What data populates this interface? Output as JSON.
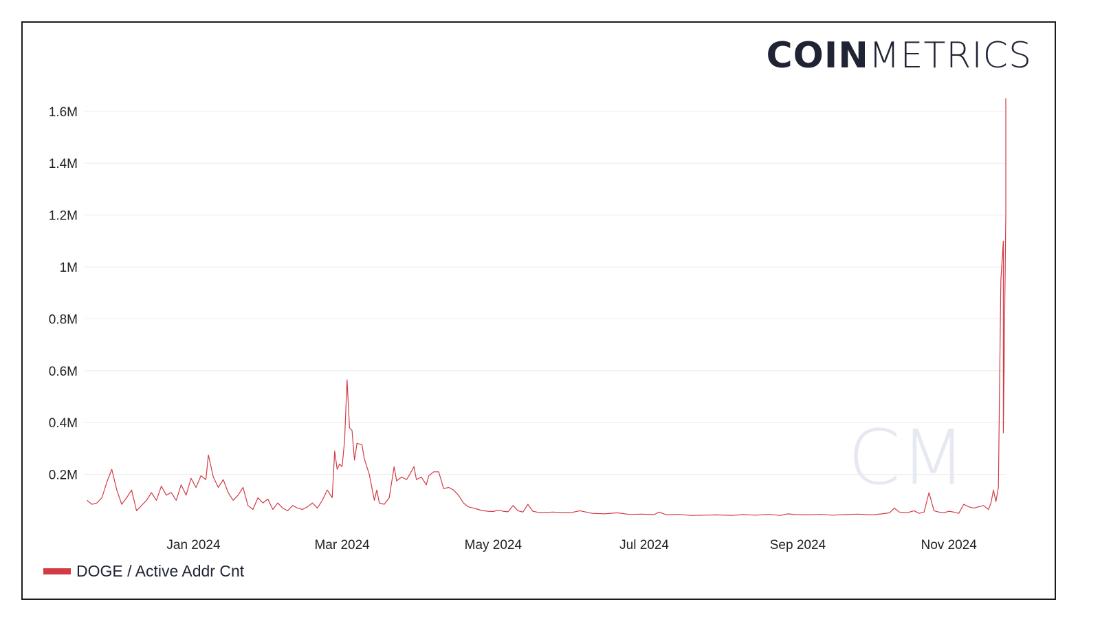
{
  "brand": {
    "bold": "COIN",
    "light": "METRICS",
    "watermark": "CM"
  },
  "chart_data": {
    "type": "line",
    "title": "",
    "xlabel": "",
    "ylabel": "",
    "ylim": [
      0,
      1650000
    ],
    "y_ticks": [
      200000,
      400000,
      600000,
      800000,
      1000000,
      1200000,
      1400000,
      1600000
    ],
    "y_tick_labels": [
      "0.2M",
      "0.4M",
      "0.6M",
      "0.8M",
      "1M",
      "1.2M",
      "1.4M",
      "1.6M"
    ],
    "x_range": [
      "2023-11-18",
      "2024-11-24"
    ],
    "x_ticks": [
      "2024-01-01",
      "2024-03-01",
      "2024-05-01",
      "2024-07-01",
      "2024-09-01",
      "2024-11-01"
    ],
    "x_tick_labels": [
      "Jan 2024",
      "Mar 2024",
      "May 2024",
      "Jul 2024",
      "Sep 2024",
      "Nov 2024"
    ],
    "grid": "horizontal",
    "legend_placement": "bottom-left",
    "series": [
      {
        "name": "DOGE / Active Addr Cnt",
        "color": "#d23a45",
        "points": [
          [
            "2023-11-19",
            100000
          ],
          [
            "2023-11-21",
            85000
          ],
          [
            "2023-11-23",
            90000
          ],
          [
            "2023-11-25",
            110000
          ],
          [
            "2023-11-27",
            170000
          ],
          [
            "2023-11-29",
            220000
          ],
          [
            "2023-12-01",
            140000
          ],
          [
            "2023-12-03",
            85000
          ],
          [
            "2023-12-05",
            110000
          ],
          [
            "2023-12-07",
            140000
          ],
          [
            "2023-12-09",
            60000
          ],
          [
            "2023-12-11",
            80000
          ],
          [
            "2023-12-13",
            100000
          ],
          [
            "2023-12-15",
            130000
          ],
          [
            "2023-12-17",
            100000
          ],
          [
            "2023-12-19",
            155000
          ],
          [
            "2023-12-21",
            120000
          ],
          [
            "2023-12-23",
            130000
          ],
          [
            "2023-12-25",
            100000
          ],
          [
            "2023-12-27",
            160000
          ],
          [
            "2023-12-29",
            120000
          ],
          [
            "2023-12-31",
            185000
          ],
          [
            "2024-01-02",
            150000
          ],
          [
            "2024-01-04",
            195000
          ],
          [
            "2024-01-06",
            180000
          ],
          [
            "2024-01-07",
            275000
          ],
          [
            "2024-01-09",
            190000
          ],
          [
            "2024-01-11",
            150000
          ],
          [
            "2024-01-13",
            180000
          ],
          [
            "2024-01-15",
            130000
          ],
          [
            "2024-01-17",
            100000
          ],
          [
            "2024-01-19",
            120000
          ],
          [
            "2024-01-21",
            150000
          ],
          [
            "2024-01-23",
            80000
          ],
          [
            "2024-01-25",
            65000
          ],
          [
            "2024-01-27",
            110000
          ],
          [
            "2024-01-29",
            90000
          ],
          [
            "2024-01-31",
            105000
          ],
          [
            "2024-02-02",
            65000
          ],
          [
            "2024-02-04",
            90000
          ],
          [
            "2024-02-06",
            70000
          ],
          [
            "2024-02-08",
            60000
          ],
          [
            "2024-02-10",
            80000
          ],
          [
            "2024-02-12",
            70000
          ],
          [
            "2024-02-14",
            65000
          ],
          [
            "2024-02-16",
            75000
          ],
          [
            "2024-02-18",
            90000
          ],
          [
            "2024-02-20",
            70000
          ],
          [
            "2024-02-22",
            100000
          ],
          [
            "2024-02-24",
            140000
          ],
          [
            "2024-02-26",
            110000
          ],
          [
            "2024-02-27",
            290000
          ],
          [
            "2024-02-28",
            220000
          ],
          [
            "2024-02-29",
            240000
          ],
          [
            "2024-03-01",
            230000
          ],
          [
            "2024-03-02",
            330000
          ],
          [
            "2024-03-03",
            565000
          ],
          [
            "2024-03-04",
            380000
          ],
          [
            "2024-03-05",
            370000
          ],
          [
            "2024-03-06",
            255000
          ],
          [
            "2024-03-07",
            320000
          ],
          [
            "2024-03-09",
            315000
          ],
          [
            "2024-03-10",
            260000
          ],
          [
            "2024-03-12",
            200000
          ],
          [
            "2024-03-14",
            100000
          ],
          [
            "2024-03-15",
            140000
          ],
          [
            "2024-03-16",
            90000
          ],
          [
            "2024-03-18",
            85000
          ],
          [
            "2024-03-20",
            110000
          ],
          [
            "2024-03-22",
            230000
          ],
          [
            "2024-03-23",
            175000
          ],
          [
            "2024-03-25",
            190000
          ],
          [
            "2024-03-27",
            180000
          ],
          [
            "2024-03-28",
            195000
          ],
          [
            "2024-03-30",
            230000
          ],
          [
            "2024-03-31",
            180000
          ],
          [
            "2024-04-02",
            190000
          ],
          [
            "2024-04-04",
            160000
          ],
          [
            "2024-04-05",
            195000
          ],
          [
            "2024-04-07",
            210000
          ],
          [
            "2024-04-09",
            210000
          ],
          [
            "2024-04-11",
            145000
          ],
          [
            "2024-04-13",
            150000
          ],
          [
            "2024-04-15",
            140000
          ],
          [
            "2024-04-17",
            120000
          ],
          [
            "2024-04-19",
            90000
          ],
          [
            "2024-04-21",
            75000
          ],
          [
            "2024-04-23",
            70000
          ],
          [
            "2024-04-25",
            65000
          ],
          [
            "2024-04-27",
            60000
          ],
          [
            "2024-04-29",
            58000
          ],
          [
            "2024-05-01",
            57000
          ],
          [
            "2024-05-03",
            62000
          ],
          [
            "2024-05-05",
            58000
          ],
          [
            "2024-05-07",
            56000
          ],
          [
            "2024-05-09",
            80000
          ],
          [
            "2024-05-11",
            60000
          ],
          [
            "2024-05-13",
            55000
          ],
          [
            "2024-05-15",
            85000
          ],
          [
            "2024-05-17",
            58000
          ],
          [
            "2024-05-20",
            52000
          ],
          [
            "2024-05-25",
            55000
          ],
          [
            "2024-06-01",
            52000
          ],
          [
            "2024-06-05",
            60000
          ],
          [
            "2024-06-10",
            50000
          ],
          [
            "2024-06-15",
            48000
          ],
          [
            "2024-06-20",
            52000
          ],
          [
            "2024-06-25",
            46000
          ],
          [
            "2024-06-30",
            47000
          ],
          [
            "2024-07-05",
            45000
          ],
          [
            "2024-07-07",
            55000
          ],
          [
            "2024-07-10",
            44000
          ],
          [
            "2024-07-15",
            46000
          ],
          [
            "2024-07-20",
            42000
          ],
          [
            "2024-07-25",
            43000
          ],
          [
            "2024-07-30",
            44000
          ],
          [
            "2024-08-05",
            42000
          ],
          [
            "2024-08-10",
            45000
          ],
          [
            "2024-08-15",
            43000
          ],
          [
            "2024-08-20",
            46000
          ],
          [
            "2024-08-25",
            42000
          ],
          [
            "2024-08-28",
            48000
          ],
          [
            "2024-08-31",
            45000
          ],
          [
            "2024-09-05",
            44000
          ],
          [
            "2024-09-10",
            46000
          ],
          [
            "2024-09-15",
            43000
          ],
          [
            "2024-09-20",
            45000
          ],
          [
            "2024-09-25",
            47000
          ],
          [
            "2024-10-01",
            44000
          ],
          [
            "2024-10-05",
            48000
          ],
          [
            "2024-10-08",
            52000
          ],
          [
            "2024-10-10",
            70000
          ],
          [
            "2024-10-12",
            55000
          ],
          [
            "2024-10-15",
            52000
          ],
          [
            "2024-10-18",
            60000
          ],
          [
            "2024-10-20",
            50000
          ],
          [
            "2024-10-22",
            55000
          ],
          [
            "2024-10-24",
            130000
          ],
          [
            "2024-10-26",
            60000
          ],
          [
            "2024-10-28",
            55000
          ],
          [
            "2024-10-30",
            52000
          ],
          [
            "2024-11-01",
            58000
          ],
          [
            "2024-11-03",
            55000
          ],
          [
            "2024-11-05",
            50000
          ],
          [
            "2024-11-07",
            85000
          ],
          [
            "2024-11-09",
            75000
          ],
          [
            "2024-11-11",
            70000
          ],
          [
            "2024-11-13",
            75000
          ],
          [
            "2024-11-15",
            80000
          ],
          [
            "2024-11-17",
            65000
          ],
          [
            "2024-11-18",
            90000
          ],
          [
            "2024-11-19",
            140000
          ],
          [
            "2024-11-20",
            95000
          ],
          [
            "2024-11-21",
            150000
          ],
          [
            "2024-11-22",
            950000
          ],
          [
            "2024-11-23",
            1100000
          ],
          [
            "2024-11-23",
            360000
          ],
          [
            "2024-11-24",
            1200000
          ],
          [
            "2024-11-24",
            1650000
          ]
        ]
      }
    ]
  }
}
